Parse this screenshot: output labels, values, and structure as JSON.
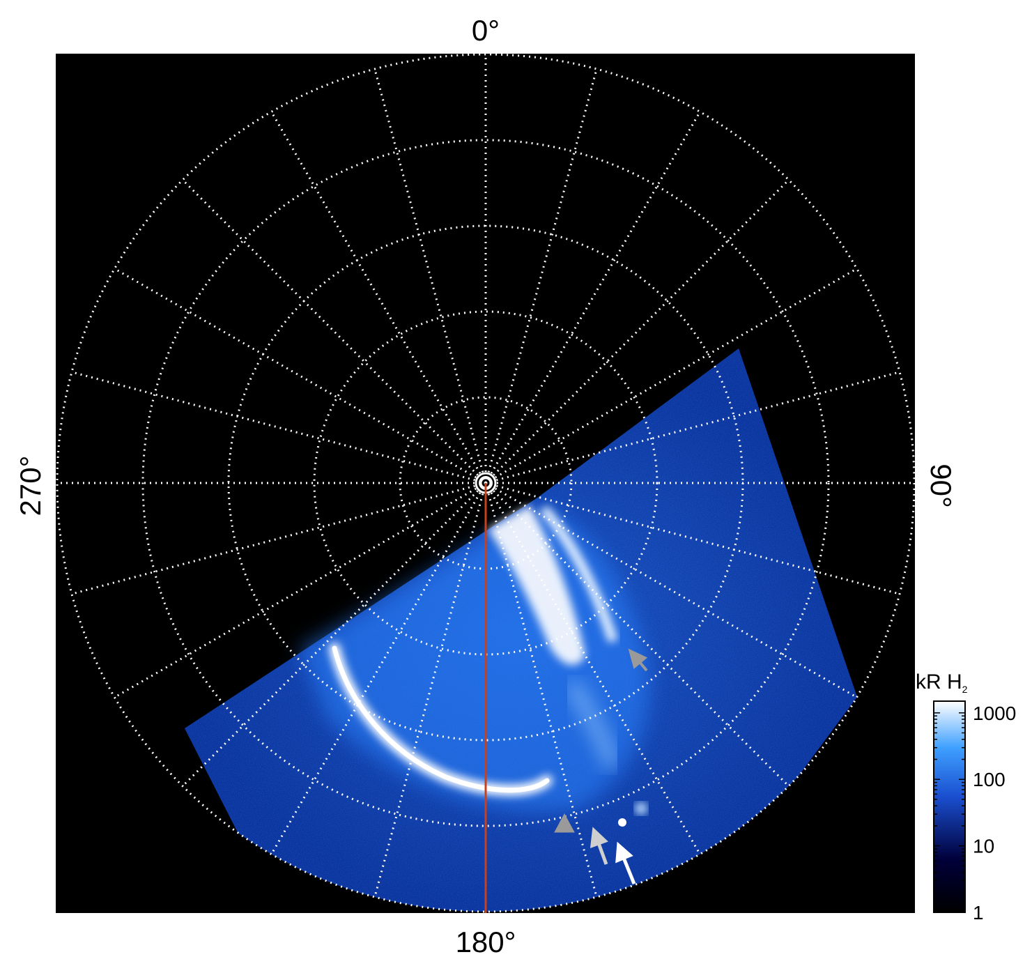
{
  "figure": {
    "longitude_labels": {
      "top": "0°",
      "right": "90°",
      "bottom": "180°",
      "left": "270°"
    },
    "colorbar": {
      "title_main": "kR H",
      "title_sub": "2",
      "ticks": [
        "1000",
        "100",
        "10",
        "1"
      ],
      "tick_values": [
        1000,
        100,
        10,
        1
      ],
      "scale": "log",
      "range": [
        1,
        1500
      ],
      "colors": [
        "#000000",
        "#00003a",
        "#1a4fd0",
        "#3fa0ff",
        "#ffffff"
      ]
    },
    "grid": {
      "style": "dotted",
      "color": "#ffffff",
      "meridian_step_deg": 15,
      "latitude_ring_count": 5
    },
    "overlay_line": {
      "color": "#c8401c",
      "longitude_deg": 180
    },
    "background_color": "#000000",
    "arrows": [
      {
        "color": "#9a9a9a"
      },
      {
        "color": "#9a9a9a"
      },
      {
        "color": "#cfcfcf"
      },
      {
        "color": "#ffffff"
      }
    ]
  }
}
